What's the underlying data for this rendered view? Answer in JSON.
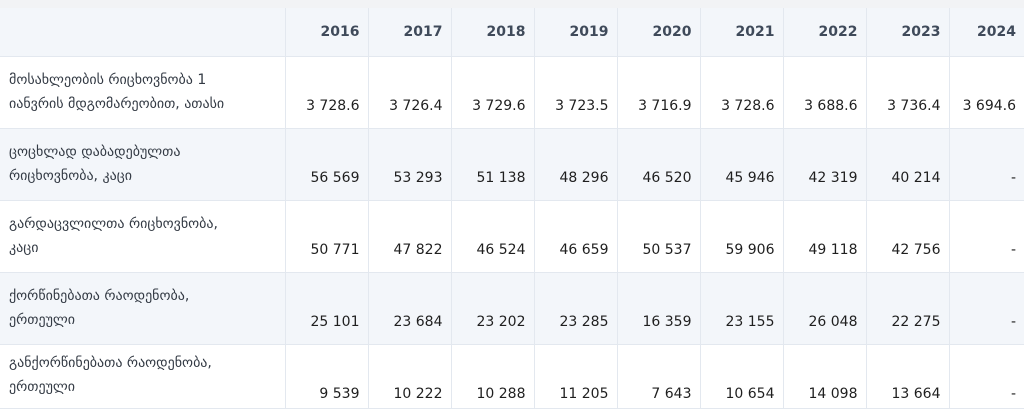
{
  "table": {
    "years": [
      "2016",
      "2017",
      "2018",
      "2019",
      "2020",
      "2021",
      "2022",
      "2023",
      "2024"
    ],
    "rows": [
      {
        "label_lines": [
          "მოსახლეობის რიცხოვნობა 1",
          "იანვრის მდგომარეობით, ათასი"
        ],
        "values": [
          "3 728.6",
          "3 726.4",
          "3 729.6",
          "3 723.5",
          "3 716.9",
          "3 728.6",
          "3 688.6",
          "3 736.4",
          "3 694.6"
        ]
      },
      {
        "label_lines": [
          "ცოცხლად დაბადებულთა",
          "რიცხოვნობა, კაცი"
        ],
        "values": [
          "56 569",
          "53 293",
          "51 138",
          "48 296",
          "46 520",
          "45 946",
          "42 319",
          "40 214",
          "-"
        ]
      },
      {
        "label_lines": [
          "გარდაცვლილთა რიცხოვნობა,",
          "კაცი"
        ],
        "values": [
          "50 771",
          "47 822",
          "46 524",
          "46 659",
          "50 537",
          "59 906",
          "49 118",
          "42 756",
          "-"
        ]
      },
      {
        "label_lines": [
          "ქორწინებათა რაოდენობა,",
          "ერთეული"
        ],
        "values": [
          "25 101",
          "23 684",
          "23 202",
          "23 285",
          "16 359",
          "23 155",
          "26 048",
          "22 275",
          "-"
        ]
      },
      {
        "label_lines": [
          "განქორწინებათა რაოდენობა,",
          "ერთეული"
        ],
        "values": [
          "9 539",
          "10 222",
          "10 288",
          "11 205",
          "7 643",
          "10 654",
          "14 098",
          "13 664",
          "-"
        ]
      }
    ]
  }
}
